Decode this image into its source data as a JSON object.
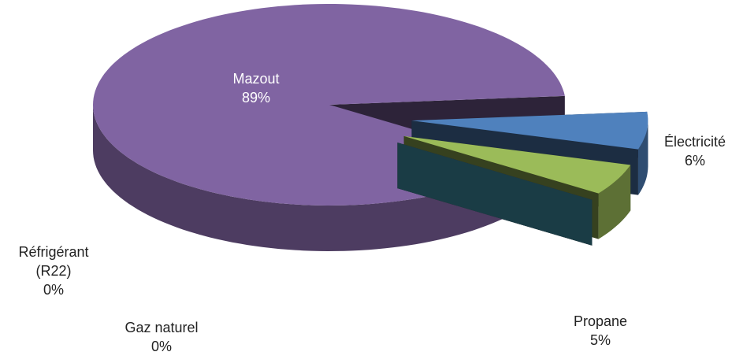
{
  "chart_data": {
    "type": "pie",
    "categories": [
      "Mazout",
      "Électricité",
      "Propane",
      "Réfrigérant (R22)",
      "Gaz naturel"
    ],
    "values": [
      89,
      6,
      5,
      0,
      0
    ],
    "value_labels": [
      "89%",
      "6%",
      "5%",
      "0%",
      "0%"
    ],
    "colors": [
      "#8064a2",
      "#4f81bd",
      "#9bbb59",
      "#c0504d",
      "#4bacc6"
    ]
  }
}
